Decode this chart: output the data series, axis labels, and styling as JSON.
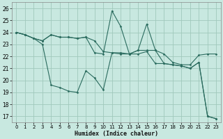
{
  "title": "",
  "xlabel": "Humidex (Indice chaleur)",
  "xlim": [
    -0.5,
    23.5
  ],
  "ylim": [
    16.5,
    26.5
  ],
  "yticks": [
    17,
    18,
    19,
    20,
    21,
    22,
    23,
    24,
    25,
    26
  ],
  "xticks": [
    0,
    1,
    2,
    3,
    4,
    5,
    6,
    7,
    8,
    9,
    10,
    11,
    12,
    13,
    14,
    15,
    16,
    17,
    18,
    19,
    20,
    21,
    22,
    23
  ],
  "background_color": "#c8e8e0",
  "grid_color": "#a0c8bc",
  "line_color": "#2a6b5e",
  "series1": [
    24.0,
    23.8,
    23.5,
    23.3,
    23.8,
    23.6,
    23.6,
    23.5,
    23.6,
    23.3,
    22.4,
    22.3,
    22.3,
    22.2,
    22.5,
    22.5,
    22.5,
    22.2,
    21.5,
    21.3,
    21.3,
    22.1,
    22.2,
    22.2
  ],
  "series2": [
    24.0,
    23.8,
    23.5,
    23.3,
    23.8,
    23.6,
    23.6,
    23.5,
    23.6,
    22.3,
    22.2,
    25.8,
    24.5,
    22.2,
    22.5,
    24.7,
    22.5,
    21.4,
    21.3,
    21.2,
    21.0,
    21.5,
    17.0,
    16.8
  ],
  "series3": [
    24.0,
    23.8,
    23.5,
    23.0,
    19.6,
    19.4,
    19.1,
    19.0,
    20.8,
    20.2,
    19.2,
    22.3,
    22.2,
    22.2,
    22.2,
    22.4,
    21.4,
    21.4,
    21.3,
    21.2,
    21.0,
    21.5,
    17.0,
    16.8
  ]
}
